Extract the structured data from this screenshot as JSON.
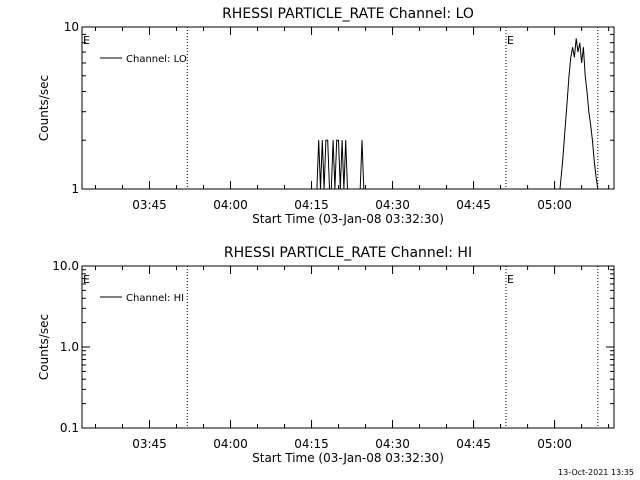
{
  "footer_timestamp": "13-Oct-2021 13:35",
  "chart_data": [
    {
      "type": "line",
      "title": "RHESSI PARTICLE_RATE Channel: LO",
      "xlabel": "Start Time (03-Jan-08 03:32:30)",
      "ylabel": "Counts/sec",
      "yscale": "log",
      "ylim": [
        1,
        10
      ],
      "ytick_values": [
        1,
        10
      ],
      "ytick_labels": [
        "1",
        "10"
      ],
      "xlim": [
        "03:32:30",
        "05:11:00"
      ],
      "xtick_times": [
        "03:45",
        "04:00",
        "04:15",
        "04:30",
        "04:45",
        "05:00"
      ],
      "xtick_labels": [
        "03:45",
        "04:00",
        "04:15",
        "04:30",
        "04:45",
        "05:00"
      ],
      "markers": [
        {
          "label": "E",
          "time": "03:32:30"
        },
        {
          "label": "",
          "time": "03:52:00"
        },
        {
          "label": "E",
          "time": "04:51:00"
        },
        {
          "label": "",
          "time": "05:08:00"
        }
      ],
      "legend": {
        "entries": [
          "Channel: LO"
        ],
        "location": "top-left"
      },
      "series": [
        {
          "name": "Channel: LO",
          "x": [
            "03:32:30",
            "04:16:00",
            "04:16:20",
            "04:16:40",
            "04:17:00",
            "04:17:20",
            "04:17:40",
            "04:18:00",
            "04:18:20",
            "04:18:40",
            "04:19:00",
            "04:19:20",
            "04:19:40",
            "04:20:00",
            "04:20:20",
            "04:20:40",
            "04:21:00",
            "04:21:20",
            "04:21:40",
            "04:22:00",
            "04:24:00",
            "04:24:20",
            "04:24:40",
            "04:25:00",
            "05:01:00",
            "05:01:30",
            "05:02:00",
            "05:02:20",
            "05:02:40",
            "05:03:00",
            "05:03:20",
            "05:03:40",
            "05:04:00",
            "05:04:20",
            "05:04:40",
            "05:05:00",
            "05:05:20",
            "05:05:40",
            "05:06:00",
            "05:06:20",
            "05:06:40",
            "05:07:00",
            "05:07:20",
            "05:07:40",
            "05:08:00",
            "05:08:20"
          ],
          "y": [
            1,
            1,
            2,
            1,
            2,
            1,
            2,
            2,
            1,
            1,
            2,
            1,
            2,
            2,
            1,
            2,
            1,
            2,
            1,
            1,
            1,
            2,
            1,
            1,
            1,
            1.5,
            2.5,
            3.5,
            5,
            6.5,
            7.5,
            6.5,
            8.5,
            7,
            8,
            6,
            7.5,
            5,
            4,
            3,
            2.5,
            2,
            1.5,
            1.2,
            1,
            1
          ]
        }
      ]
    },
    {
      "type": "line",
      "title": "RHESSI PARTICLE_RATE Channel: HI",
      "xlabel": "Start Time (03-Jan-08 03:32:30)",
      "ylabel": "Counts/sec",
      "yscale": "log",
      "ylim": [
        0.1,
        10
      ],
      "ytick_values": [
        0.1,
        1,
        10
      ],
      "ytick_labels": [
        "0.1",
        "1.0",
        "10.0"
      ],
      "xlim": [
        "03:32:30",
        "05:11:00"
      ],
      "xtick_times": [
        "03:45",
        "04:00",
        "04:15",
        "04:30",
        "04:45",
        "05:00"
      ],
      "xtick_labels": [
        "03:45",
        "04:00",
        "04:15",
        "04:30",
        "04:45",
        "05:00"
      ],
      "markers": [
        {
          "label": "E",
          "time": "03:32:30"
        },
        {
          "label": "",
          "time": "03:52:00"
        },
        {
          "label": "E",
          "time": "04:51:00"
        },
        {
          "label": "",
          "time": "05:08:00"
        }
      ],
      "legend": {
        "entries": [
          "Channel: HI"
        ],
        "location": "top-left"
      },
      "series": [
        {
          "name": "Channel: HI",
          "x": [],
          "y": []
        }
      ]
    }
  ]
}
